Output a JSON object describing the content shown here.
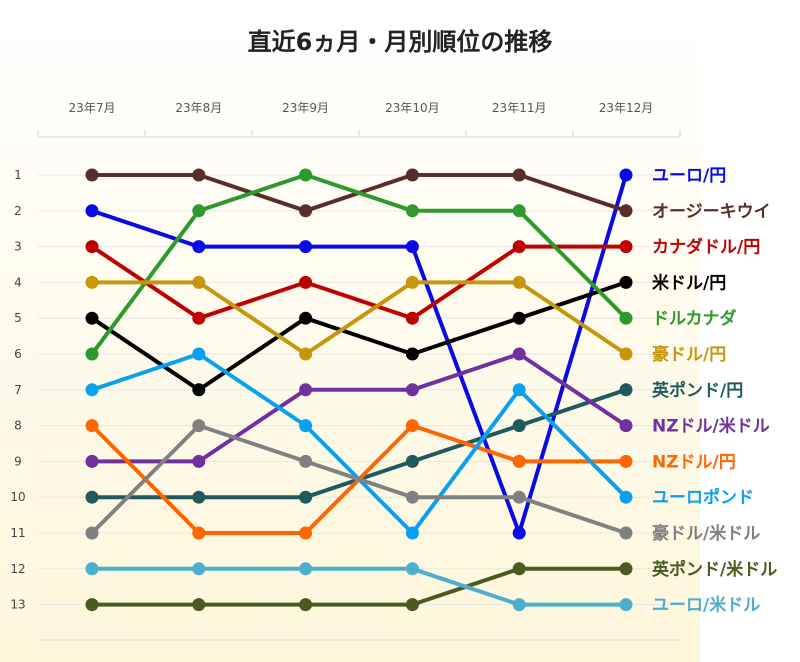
{
  "chart_data": {
    "type": "line",
    "title": "直近6ヵ月・月別順位の推移",
    "categories": [
      "23年7月",
      "23年8月",
      "23年9月",
      "23年10月",
      "23年11月",
      "23年12月"
    ],
    "ylim": [
      1,
      13
    ],
    "y_ticks": [
      "1",
      "2",
      "3",
      "4",
      "5",
      "6",
      "7",
      "8",
      "9",
      "10",
      "11",
      "12",
      "13"
    ],
    "y_inverted": true,
    "legend_position": "right-end-labels",
    "series": [
      {
        "name": "ユーロ/円",
        "color": "#0a0ae6",
        "values": [
          2,
          3,
          3,
          3,
          11,
          1
        ]
      },
      {
        "name": "オージーキウイ",
        "color": "#5a2e28",
        "values": [
          1,
          1,
          2,
          1,
          1,
          2
        ]
      },
      {
        "name": "カナダドル/円",
        "color": "#c00000",
        "values": [
          3,
          5,
          4,
          5,
          3,
          3
        ]
      },
      {
        "name": "米ドル/円",
        "color": "#000000",
        "values": [
          5,
          7,
          5,
          6,
          5,
          4
        ]
      },
      {
        "name": "ドルカナダ",
        "color": "#2e9a2e",
        "values": [
          6,
          2,
          1,
          2,
          2,
          5
        ]
      },
      {
        "name": "豪ドル/円",
        "color": "#c8960a",
        "values": [
          4,
          4,
          6,
          4,
          4,
          6
        ]
      },
      {
        "name": "英ポンド/円",
        "color": "#1f5a5f",
        "values": [
          10,
          10,
          10,
          9,
          8,
          7
        ]
      },
      {
        "name": "NZドル/米ドル",
        "color": "#7030a0",
        "values": [
          9,
          9,
          7,
          7,
          6,
          8
        ]
      },
      {
        "name": "NZドル/円",
        "color": "#ff6600",
        "values": [
          8,
          11,
          11,
          8,
          9,
          9
        ]
      },
      {
        "name": "ユーロポンド",
        "color": "#0aa0f0",
        "values": [
          7,
          6,
          8,
          11,
          7,
          10
        ]
      },
      {
        "name": "豪ドル/米ドル",
        "color": "#808080",
        "values": [
          11,
          8,
          9,
          10,
          10,
          11
        ]
      },
      {
        "name": "英ポンド/米ドル",
        "color": "#4a5a20",
        "values": [
          13,
          13,
          13,
          13,
          12,
          12
        ]
      },
      {
        "name": "ユーロ/米ドル",
        "color": "#4aaecc",
        "values": [
          12,
          12,
          12,
          12,
          13,
          13
        ]
      }
    ]
  }
}
